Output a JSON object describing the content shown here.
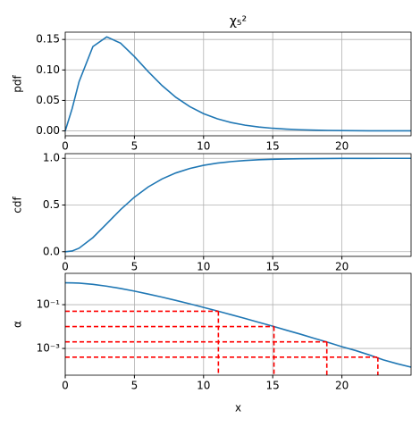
{
  "chart_data": [
    {
      "type": "line",
      "title": "χ₅²",
      "ylabel": "pdf",
      "x": [
        0,
        0.5,
        1,
        2,
        3,
        4,
        5,
        6,
        7,
        8,
        9,
        10,
        11,
        12,
        13,
        14,
        15,
        16,
        17,
        18,
        19,
        20,
        21,
        22,
        23,
        24,
        25
      ],
      "series": [
        {
          "color": "#1f77b4",
          "values": [
            0,
            0.0366,
            0.0807,
            0.1384,
            0.1542,
            0.144,
            0.122,
            0.0973,
            0.0744,
            0.0551,
            0.0399,
            0.0283,
            0.0198,
            0.0137,
            0.0094,
            0.0064,
            0.0043,
            0.0029,
            0.0019,
            0.0013,
            0.0008,
            0.0005,
            0.0003,
            0.0002,
            0.0001,
            0.0001,
            0.0001
          ]
        }
      ],
      "xlim": [
        0,
        25
      ],
      "xticks": [
        0,
        5,
        10,
        15,
        20
      ],
      "ylim": [
        -0.008,
        0.162
      ],
      "yticks": [
        {
          "value": 0,
          "label": "0.00"
        },
        {
          "value": 0.05,
          "label": "0.05"
        },
        {
          "value": 0.1,
          "label": "0.10"
        },
        {
          "value": 0.15,
          "label": "0.15"
        }
      ],
      "grid": true
    },
    {
      "type": "line",
      "ylabel": "cdf",
      "x": [
        0,
        0.5,
        1,
        2,
        3,
        4,
        5,
        6,
        7,
        8,
        9,
        10,
        11,
        12,
        13,
        14,
        15,
        16,
        17,
        18,
        19,
        20,
        21,
        22,
        23,
        24,
        25
      ],
      "series": [
        {
          "color": "#1f77b4",
          "values": [
            0,
            0.0079,
            0.0374,
            0.1509,
            0.3,
            0.4506,
            0.5841,
            0.6938,
            0.7794,
            0.8438,
            0.8909,
            0.9248,
            0.9486,
            0.9652,
            0.9766,
            0.9844,
            0.9896,
            0.9932,
            0.9955,
            0.9971,
            0.9981,
            0.9988,
            0.9992,
            0.9995,
            0.9997,
            0.9998,
            0.9999
          ]
        }
      ],
      "xlim": [
        0,
        25
      ],
      "xticks": [
        0,
        5,
        10,
        15,
        20
      ],
      "ylim": [
        -0.05,
        1.05
      ],
      "yticks": [
        {
          "value": 0,
          "label": "0.0"
        },
        0.5,
        {
          "value": 1,
          "label": "1.0"
        }
      ],
      "grid": true
    },
    {
      "type": "line",
      "ylabel": "α",
      "xlabel": "x",
      "log_y": true,
      "x": [
        0,
        0.5,
        1,
        2,
        3,
        4,
        5,
        6,
        7,
        8,
        9,
        10,
        11,
        12,
        13,
        14,
        15,
        16,
        17,
        18,
        19,
        20,
        21,
        22,
        23,
        24,
        25
      ],
      "series": [
        {
          "color": "#1f77b4",
          "values": [
            1,
            0.9921,
            0.9626,
            0.8491,
            0.7,
            0.5494,
            0.4159,
            0.3062,
            0.2206,
            0.1562,
            0.1091,
            0.0752,
            0.0514,
            0.0348,
            0.0234,
            0.0156,
            0.0104,
            0.0068,
            0.0045,
            0.0029,
            0.0019,
            0.0012,
            0.0008,
            0.0005,
            0.0003,
            0.0002,
            0.00014
          ]
        }
      ],
      "critical": {
        "color": "#ff0000",
        "x": [
          11.07,
          15.09,
          18.91,
          22.6
        ],
        "alpha": [
          0.05,
          0.01,
          0.002,
          0.0004
        ]
      },
      "xlim": [
        0,
        25
      ],
      "xticks": [
        0,
        5,
        10,
        15,
        20
      ],
      "ylim": [
        6e-05,
        2.7
      ],
      "yticks": [
        {
          "value": 0.1,
          "label": "10⁻¹"
        },
        {
          "value": 0.001,
          "label": "10⁻³"
        }
      ],
      "grid": true
    }
  ]
}
